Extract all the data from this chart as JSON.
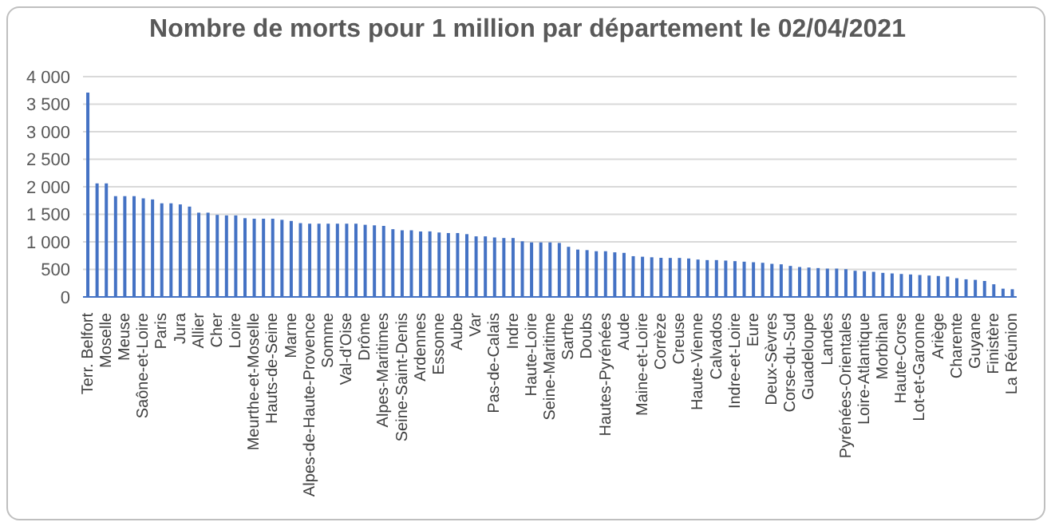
{
  "chart_data": {
    "type": "bar",
    "title": "Nombre de morts pour 1 million par département le 02/04/2021",
    "categories": [
      "Terr. Belfort",
      null,
      "Moselle",
      null,
      "Meuse",
      null,
      "Saône-et-Loire",
      null,
      "Paris",
      null,
      "Jura",
      null,
      "Allier",
      null,
      "Cher",
      null,
      "Loire",
      null,
      "Meurthe-et-Moselle",
      null,
      "Hauts-de-Seine",
      null,
      "Marne",
      null,
      "Alpes-de-Haute-Provence",
      null,
      "Somme",
      null,
      "Val-d'Oise",
      null,
      "Drôme",
      null,
      "Alpes-Maritimes",
      null,
      "Seine-Saint-Denis",
      null,
      "Ardennes",
      null,
      "Essonne",
      null,
      "Aube",
      null,
      "Var",
      null,
      "Pas-de-Calais",
      null,
      "Indre",
      null,
      "Haute-Loire",
      null,
      "Seine-Maritime",
      null,
      "Sarthe",
      null,
      "Doubs",
      null,
      "Hautes-Pyrénées",
      null,
      "Aude",
      null,
      "Maine-et-Loire",
      null,
      "Corrèze",
      null,
      "Creuse",
      null,
      "Haute-Vienne",
      null,
      "Calvados",
      null,
      "Indre-et-Loire",
      null,
      "Eure",
      null,
      "Deux-Sèvres",
      null,
      "Corse-du-Sud",
      null,
      "Guadeloupe",
      null,
      "Landes",
      null,
      "Pyrénées-Orientales",
      null,
      "Loire-Atlantique",
      null,
      "Morbihan",
      null,
      "Haute-Corse",
      null,
      "Lot-et-Garonne",
      null,
      "Ariège",
      null,
      "Charente",
      null,
      "Guyane",
      null,
      "Finistère",
      null,
      "La Réunion"
    ],
    "values": [
      3710,
      2060,
      2060,
      1830,
      1830,
      1830,
      1790,
      1770,
      1700,
      1700,
      1680,
      1640,
      1530,
      1530,
      1490,
      1480,
      1480,
      1430,
      1420,
      1420,
      1420,
      1400,
      1380,
      1340,
      1330,
      1330,
      1330,
      1330,
      1330,
      1330,
      1310,
      1300,
      1290,
      1230,
      1210,
      1210,
      1190,
      1190,
      1170,
      1160,
      1160,
      1140,
      1100,
      1100,
      1080,
      1070,
      1070,
      1010,
      990,
      990,
      990,
      980,
      910,
      860,
      850,
      830,
      830,
      810,
      800,
      740,
      730,
      720,
      710,
      708,
      708,
      698,
      679,
      669,
      669,
      660,
      650,
      640,
      630,
      620,
      601,
      592,
      563,
      543,
      534,
      524,
      514,
      514,
      504,
      475,
      466,
      456,
      437,
      427,
      417,
      408,
      398,
      388,
      380,
      370,
      340,
      320,
      310,
      290,
      230,
      150,
      140
    ],
    "color": "#4472c4",
    "ylim": [
      0,
      4000
    ],
    "yticks": [
      {
        "value": 0,
        "label": "0"
      },
      {
        "value": 500,
        "label": "500"
      },
      {
        "value": 1000,
        "label": "1 000"
      },
      {
        "value": 1500,
        "label": "1 500"
      },
      {
        "value": 2000,
        "label": "2 000"
      },
      {
        "value": 2500,
        "label": "2 500"
      },
      {
        "value": 3000,
        "label": "3 000"
      },
      {
        "value": 3500,
        "label": "3 500"
      },
      {
        "value": 4000,
        "label": "4 000"
      }
    ],
    "grid": "y"
  }
}
